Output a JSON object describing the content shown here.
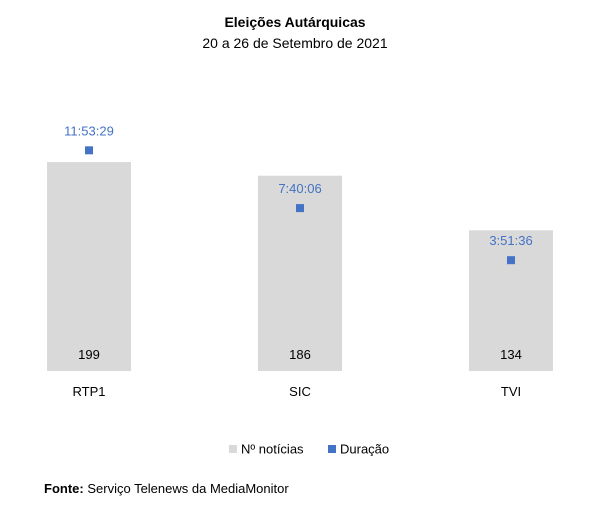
{
  "chart_data": {
    "type": "bar",
    "title": "Eleições Autárquicas",
    "subtitle": "20 a 26 de Setembro de 2021",
    "categories": [
      "RTP1",
      "SIC",
      "TVI"
    ],
    "series": [
      {
        "name": "Nº notícias",
        "values": [
          199,
          186,
          134
        ],
        "color": "#d9d9d9"
      },
      {
        "name": "Duração",
        "values": [
          "11:53:29",
          "7:40:06",
          "3:51:36"
        ],
        "color": "#4472c4"
      }
    ],
    "legend_position": "bottom",
    "grid": false
  },
  "source": {
    "label": "Fonte:",
    "text": "Serviço Telenews da MediaMonitor"
  }
}
